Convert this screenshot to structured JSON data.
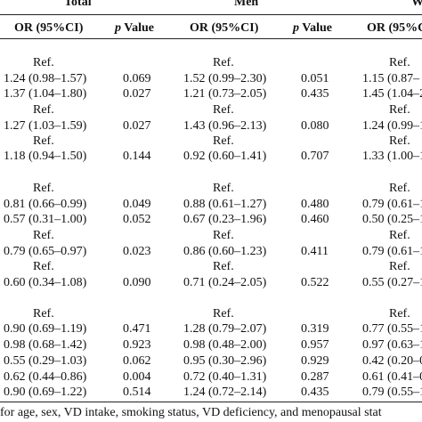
{
  "groups": {
    "total": "Total",
    "men": "Men",
    "women": "W"
  },
  "columns": {
    "or1": "OR (95%CI)",
    "p1_italic": "p",
    "p1_rest": " Value",
    "or2": "OR (95%CI)",
    "p2_italic": "p",
    "p2_rest": " Value",
    "or3": "OR (95%CI)"
  },
  "sections": [
    {
      "rows": [
        [
          "Ref.",
          "",
          "Ref.",
          "",
          "Ref."
        ],
        [
          "1.24 (0.98–1.57)",
          "0.069",
          "1.52 (0.99–2.30)",
          "0.051",
          "1.15 (0.87–"
        ],
        [
          "1.37 (1.04–1.80)",
          "0.027",
          "1.21 (0.73–2.05)",
          "0.435",
          "1.45 (1.04–2"
        ],
        [
          "Ref.",
          "",
          "Ref.",
          "",
          "Ref."
        ],
        [
          "1.27 (1.03–1.59)",
          "0.027",
          "1.43 (0.96–2.13)",
          "0.080",
          "1.24 (0.99–1"
        ],
        [
          "Ref.",
          "",
          "Ref.",
          "",
          "Ref."
        ],
        [
          "1.18 (0.94–1.50)",
          "0.144",
          "0.92 (0.60–1.41)",
          "0.707",
          "1.33 (1.00–1"
        ]
      ]
    },
    {
      "rows": [
        [
          "Ref.",
          "",
          "Ref.",
          "",
          "Ref."
        ],
        [
          "0.81 (0.66–0.99)",
          "0.049",
          "0.88 (0.61–1.27)",
          "0.480",
          "0.79 (0.61–1"
        ],
        [
          "0.57 (0.31–1.00)",
          "0.052",
          "0.67 (0.23–1.96)",
          "0.460",
          "0.50 (0.25–1"
        ],
        [
          "Ref.",
          "",
          "Ref.",
          "",
          "Ref."
        ],
        [
          "0.79 (0.65–0.97)",
          "0.023",
          "0.86 (0.60–1.23)",
          "0.411",
          "0.79 (0.61–1"
        ],
        [
          "Ref.",
          "",
          "Ref.",
          "",
          "Ref."
        ],
        [
          "0.60 (0.34–1.08)",
          "0.090",
          "0.71 (0.24–2.05)",
          "0.522",
          "0.55 (0.27–1"
        ]
      ]
    },
    {
      "rows": [
        [
          "Ref.",
          "",
          "Ref.",
          "",
          "Ref."
        ],
        [
          "0.90 (0.69–1.19)",
          "0.471",
          "1.28 (0.79–2.07)",
          "0.319",
          "0.77 (0.55–1"
        ],
        [
          "0.98 (0.68–1.42)",
          "0.923",
          "0.98 (0.48–2.00)",
          "0.957",
          "0.97 (0.63–1"
        ],
        [
          "0.55 (0.29–1.03)",
          "0.062",
          "0.95 (0.30–2.96)",
          "0.929",
          "0.42 (0.20–0"
        ],
        [
          "0.62 (0.44–0.86)",
          "0.004",
          "0.72 (0.40–1.31)",
          "0.287",
          "0.61 (0.41–0"
        ],
        [
          "0.90 (0.69–1.22)",
          "0.514",
          "1.24 (0.72–2.14)",
          "0.435",
          "0.79 (0.55–1"
        ]
      ]
    }
  ],
  "footnote": "for age, sex, VD intake, smoking status, VD deficiency, and menopausal stat"
}
